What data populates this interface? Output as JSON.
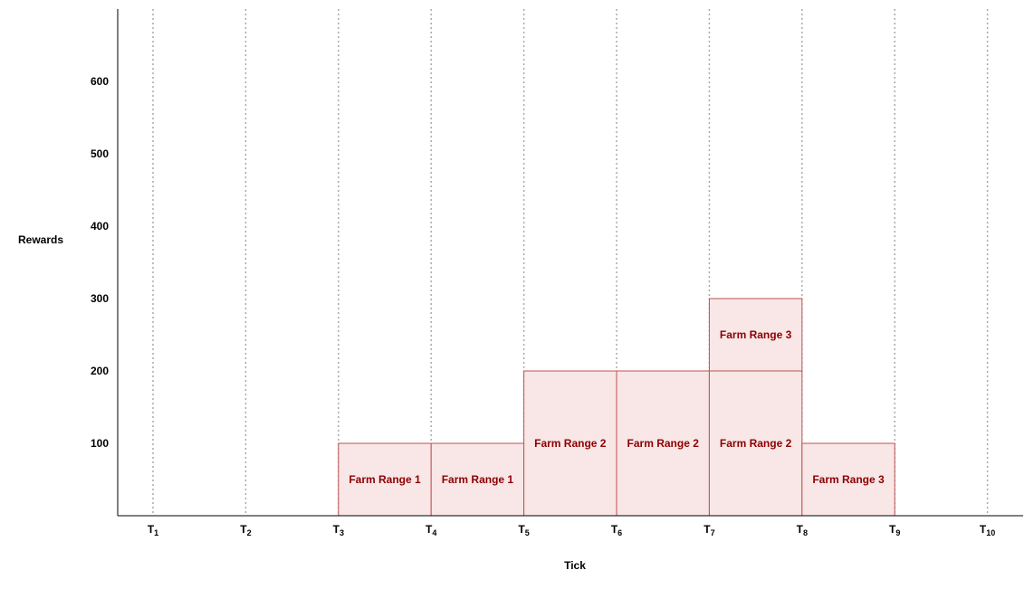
{
  "chart_data": {
    "type": "bar",
    "title": "",
    "xlabel": "Tick",
    "ylabel": "Rewards",
    "ylim": [
      0,
      700
    ],
    "y_ticks": [
      100,
      200,
      300,
      400,
      500,
      600
    ],
    "x_ticks": [
      {
        "base": "T",
        "sub": "1"
      },
      {
        "base": "T",
        "sub": "2"
      },
      {
        "base": "T",
        "sub": "3"
      },
      {
        "base": "T",
        "sub": "4"
      },
      {
        "base": "T",
        "sub": "5"
      },
      {
        "base": "T",
        "sub": "6"
      },
      {
        "base": "T",
        "sub": "7"
      },
      {
        "base": "T",
        "sub": "8"
      },
      {
        "base": "T",
        "sub": "9"
      },
      {
        "base": "T",
        "sub": "10"
      }
    ],
    "grid": "vertical dotted lines at each tick",
    "segments": [
      {
        "from": 3,
        "to": 4,
        "bottom": 0,
        "top": 100,
        "label": "Farm Range 1"
      },
      {
        "from": 4,
        "to": 5,
        "bottom": 0,
        "top": 100,
        "label": "Farm Range 1"
      },
      {
        "from": 5,
        "to": 6,
        "bottom": 0,
        "top": 200,
        "label": "Farm Range 2"
      },
      {
        "from": 6,
        "to": 7,
        "bottom": 0,
        "top": 200,
        "label": "Farm Range 2"
      },
      {
        "from": 7,
        "to": 8,
        "bottom": 0,
        "top": 200,
        "label": "Farm Range 2"
      },
      {
        "from": 7,
        "to": 8,
        "bottom": 200,
        "top": 300,
        "label": "Farm Range 3"
      },
      {
        "from": 8,
        "to": 9,
        "bottom": 0,
        "top": 100,
        "label": "Farm Range 3"
      }
    ],
    "colors": {
      "fill": "#f9e6e6",
      "stroke": "#b85450",
      "label": "#8b0000",
      "grid": "#aaaaaa"
    }
  }
}
